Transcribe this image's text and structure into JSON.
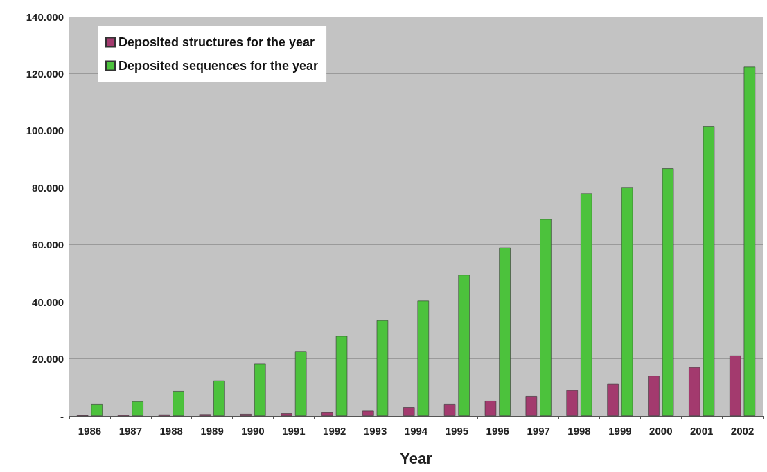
{
  "chart_data": {
    "type": "bar",
    "xlabel": "Year",
    "categories": [
      "1986",
      "1987",
      "1988",
      "1989",
      "1990",
      "1991",
      "1992",
      "1993",
      "1994",
      "1995",
      "1996",
      "1997",
      "1998",
      "1999",
      "2000",
      "2001",
      "2002"
    ],
    "series": [
      {
        "name": "Deposited structures for the year",
        "color": "#a33a6e",
        "values": [
          300,
          400,
          500,
          600,
          700,
          900,
          1200,
          1800,
          3100,
          4100,
          5300,
          7000,
          9000,
          11200,
          14000,
          17000,
          21100
        ]
      },
      {
        "name": "Deposited sequences for the year",
        "color": "#4cc23c",
        "values": [
          4100,
          5100,
          8700,
          12400,
          18300,
          22700,
          28000,
          33500,
          40400,
          49400,
          59000,
          69000,
          78000,
          80200,
          86800,
          101600,
          122400
        ]
      }
    ],
    "ylim": [
      0,
      140000
    ],
    "yticks": [
      {
        "value": 0,
        "label": "-"
      },
      {
        "value": 20000,
        "label": "20.000"
      },
      {
        "value": 40000,
        "label": "40.000"
      },
      {
        "value": 60000,
        "label": "60.000"
      },
      {
        "value": 80000,
        "label": "80.000"
      },
      {
        "value": 100000,
        "label": "100.000"
      },
      {
        "value": 120000,
        "label": "120.000"
      },
      {
        "value": 140000,
        "label": "140.000"
      }
    ],
    "grid": "y",
    "legend": "top left"
  }
}
